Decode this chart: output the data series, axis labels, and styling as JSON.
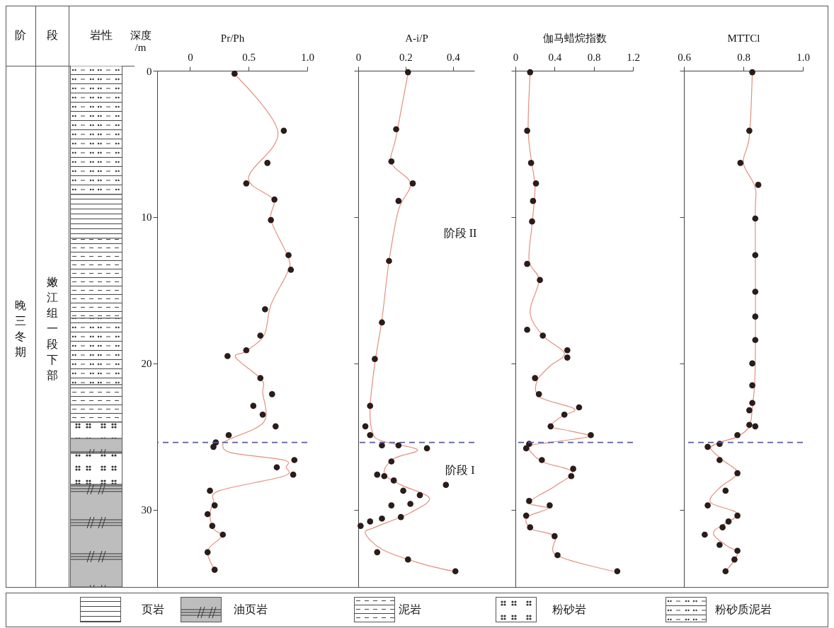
{
  "chart_data": [
    {
      "type": "other",
      "annotations": [
        "阶",
        "段",
        "岩性",
        "晚三冬期",
        "嫩江组一段下部",
        "页岩",
        "油页岩",
        "泥岩",
        "粉砂岩",
        "粉砂质泥岩"
      ]
    },
    {
      "type": "scatter",
      "xlabel": "Pr/Ph",
      "ylabel": "深度 /m",
      "xlim": [
        -0.28,
        1.0
      ],
      "xticks": [
        0,
        0.5,
        {
          "value": 1,
          "label": "1.0"
        }
      ],
      "ylim": [
        35.3,
        0
      ],
      "yticks": [
        0,
        10,
        20,
        30
      ],
      "ref_lines": [
        {
          "axis": "y",
          "value": 25.4,
          "color": "#5a5a9e",
          "line_style": "dashed"
        }
      ],
      "series": [
        {
          "type": "line",
          "color": "#e3907e",
          "x": [
            0.4,
            0.75,
            0.5,
            0.71,
            0.69,
            0.84,
            0.83,
            0.69,
            0.63,
            0.47,
            0.39,
            0.61,
            0.62,
            0.63,
            0.33,
            0.28,
            0.35,
            0.8,
            0.82,
            0.8,
            0.25,
            0.2,
            0.17,
            0.2,
            0.27,
            0.15,
            0.21
          ],
          "values": [
            0.4,
            4.2,
            7.3,
            8.8,
            10.2,
            12.8,
            13.8,
            16.0,
            18.1,
            19.2,
            19.6,
            21.1,
            22.0,
            24.0,
            25.2,
            25.5,
            26.1,
            26.6,
            27.1,
            27.7,
            28.7,
            29.5,
            30.3,
            31.3,
            31.8,
            32.8,
            34.1
          ]
        },
        {
          "color": "#2a1c19",
          "marker": "circle",
          "x": [
            0.38,
            0.8,
            0.66,
            0.48,
            0.72,
            0.69,
            0.84,
            0.86,
            0.64,
            0.6,
            0.48,
            0.32,
            0.6,
            0.7,
            0.54,
            0.62,
            0.73,
            0.33,
            0.22,
            0.2,
            0.89,
            0.74,
            0.88,
            0.17,
            0.21,
            0.15,
            0.19,
            0.28,
            0.15,
            0.21
          ],
          "values": [
            0.2,
            4.1,
            6.3,
            7.7,
            8.8,
            10.2,
            12.6,
            13.6,
            16.3,
            18.1,
            19.1,
            19.5,
            21.0,
            22.1,
            22.9,
            23.5,
            24.3,
            24.9,
            25.4,
            25.7,
            26.6,
            27.1,
            27.6,
            28.7,
            29.7,
            30.3,
            31.1,
            31.7,
            32.9,
            34.1
          ]
        }
      ]
    },
    {
      "type": "scatter",
      "xlabel": "A-i/P",
      "tick_labels": "x",
      "xlim": [
        0,
        0.49
      ],
      "xticks": [
        0,
        0.2,
        0.4
      ],
      "ylim": [
        35.3,
        0
      ],
      "yticks": [
        0,
        10,
        20,
        30
      ],
      "ref_lines": [
        {
          "axis": "y",
          "value": 25.4,
          "color": "#5a5a9e",
          "line_style": "dashed"
        }
      ],
      "annotations": [
        "阶段 II",
        "阶段 I"
      ],
      "series": [
        {
          "type": "line",
          "color": "#e3907e",
          "x": [
            0.21,
            0.16,
            0.14,
            0.22,
            0.17,
            0.13,
            0.1,
            0.07,
            0.05,
            0.06,
            0.1,
            0.25,
            0.15,
            0.11,
            0.18,
            0.3,
            0.22,
            0.07,
            0.03,
            0.1,
            0.25,
            0.4
          ],
          "values": [
            0.2,
            4.5,
            6.3,
            7.7,
            9.5,
            13.0,
            17.0,
            20.0,
            23.0,
            24.7,
            25.3,
            25.9,
            26.5,
            27.5,
            28.3,
            29.2,
            30.2,
            31.2,
            31.6,
            32.7,
            33.6,
            34.2
          ]
        },
        {
          "color": "#2a1c19",
          "marker": "circle",
          "x": [
            0.21,
            0.16,
            0.14,
            0.23,
            0.17,
            0.13,
            0.1,
            0.07,
            0.05,
            0.03,
            0.05,
            0.1,
            0.17,
            0.29,
            0.14,
            0.08,
            0.11,
            0.15,
            0.19,
            0.26,
            0.37,
            0.22,
            0.14,
            0.18,
            0.1,
            0.05,
            0.01,
            0.08,
            0.21,
            0.41
          ],
          "values": [
            0.1,
            4.0,
            6.2,
            7.7,
            8.9,
            13.0,
            17.2,
            19.7,
            22.9,
            24.3,
            24.9,
            25.6,
            25.6,
            25.8,
            26.7,
            27.6,
            27.7,
            28.0,
            28.7,
            29.0,
            28.3,
            29.6,
            29.7,
            30.5,
            30.6,
            30.8,
            31.1,
            32.9,
            33.4,
            34.2
          ]
        }
      ]
    },
    {
      "type": "scatter",
      "xlabel": "伽马蜡烷指数",
      "tick_labels": "x",
      "xlim": [
        0,
        1.2
      ],
      "xticks": [
        0,
        0.4,
        0.8,
        1.2
      ],
      "ylim": [
        35.3,
        0
      ],
      "yticks": [
        0,
        10,
        20,
        30
      ],
      "ref_lines": [
        {
          "axis": "y",
          "value": 25.4,
          "color": "#5a5a9e",
          "line_style": "dashed"
        }
      ],
      "series": [
        {
          "type": "line",
          "color": "#e3907e",
          "x": [
            0.15,
            0.13,
            0.16,
            0.2,
            0.17,
            0.14,
            0.24,
            0.15,
            0.28,
            0.5,
            0.35,
            0.22,
            0.25,
            0.6,
            0.48,
            0.36,
            0.55,
            0.75,
            0.35,
            0.14,
            0.27,
            0.58,
            0.4,
            0.14,
            0.33,
            0.12,
            0.16,
            0.4,
            0.42,
            1.0
          ],
          "values": [
            0.2,
            4.0,
            6.0,
            8.0,
            10.5,
            13.0,
            14.3,
            16.5,
            18.1,
            19.3,
            20.2,
            21.2,
            22.3,
            23.1,
            23.6,
            24.3,
            24.6,
            25.0,
            25.4,
            25.7,
            26.7,
            27.4,
            28.4,
            29.5,
            29.9,
            30.5,
            31.3,
            31.8,
            33.1,
            34.2
          ]
        },
        {
          "color": "#2a1c19",
          "marker": "circle",
          "x": [
            0.15,
            0.12,
            0.16,
            0.21,
            0.18,
            0.17,
            0.12,
            0.25,
            0.12,
            0.28,
            0.53,
            0.53,
            0.2,
            0.24,
            0.65,
            0.5,
            0.36,
            0.77,
            0.14,
            0.11,
            0.27,
            0.59,
            0.57,
            0.14,
            0.35,
            0.11,
            0.15,
            0.4,
            0.43,
            1.04
          ],
          "values": [
            0.1,
            4.1,
            6.3,
            7.7,
            8.9,
            10.3,
            13.2,
            14.3,
            17.7,
            18.1,
            19.1,
            19.6,
            21.0,
            22.1,
            23.0,
            23.5,
            24.3,
            24.9,
            25.5,
            25.8,
            26.6,
            27.2,
            27.7,
            29.4,
            29.7,
            30.4,
            31.2,
            31.8,
            33.1,
            34.2
          ]
        }
      ]
    },
    {
      "type": "scatter",
      "xlabel": "MTTCl",
      "tick_labels": "x",
      "xlim": [
        0.6,
        1.0
      ],
      "xticks": [
        0.6,
        0.8,
        {
          "value": 1,
          "label": "1.0"
        }
      ],
      "ylim": [
        35.3,
        0
      ],
      "yticks": [
        0,
        10,
        20,
        30
      ],
      "ref_lines": [
        {
          "axis": "y",
          "value": 25.4,
          "color": "#5a5a9e",
          "line_style": "dashed"
        }
      ],
      "series": [
        {
          "type": "line",
          "color": "#e3907e",
          "x": [
            0.83,
            0.82,
            0.8,
            0.84,
            0.84,
            0.84,
            0.83,
            0.82,
            0.78,
            0.72,
            0.69,
            0.73,
            0.78,
            0.72,
            0.69,
            0.78,
            0.7,
            0.74,
            0.78,
            0.74
          ],
          "values": [
            0.2,
            4.5,
            6.3,
            8.0,
            10.0,
            20.0,
            23.0,
            24.3,
            25.0,
            25.4,
            25.8,
            26.6,
            27.5,
            28.5,
            29.5,
            30.3,
            31.5,
            32.4,
            33.0,
            34.2
          ]
        },
        {
          "color": "#2a1c19",
          "marker": "circle",
          "x": [
            0.83,
            0.82,
            0.79,
            0.85,
            0.84,
            0.84,
            0.84,
            0.84,
            0.84,
            0.83,
            0.83,
            0.83,
            0.82,
            0.82,
            0.84,
            0.78,
            0.72,
            0.68,
            0.72,
            0.78,
            0.74,
            0.68,
            0.78,
            0.75,
            0.73,
            0.67,
            0.72,
            0.78,
            0.77,
            0.74
          ],
          "values": [
            0.1,
            4.1,
            6.3,
            7.8,
            10.1,
            12.6,
            15.1,
            16.8,
            18.4,
            20.0,
            21.5,
            22.7,
            23.2,
            24.2,
            24.3,
            24.9,
            25.5,
            25.7,
            26.6,
            27.5,
            28.7,
            29.7,
            30.4,
            30.8,
            31.2,
            31.7,
            32.4,
            32.8,
            33.4,
            34.2
          ]
        }
      ]
    }
  ]
}
